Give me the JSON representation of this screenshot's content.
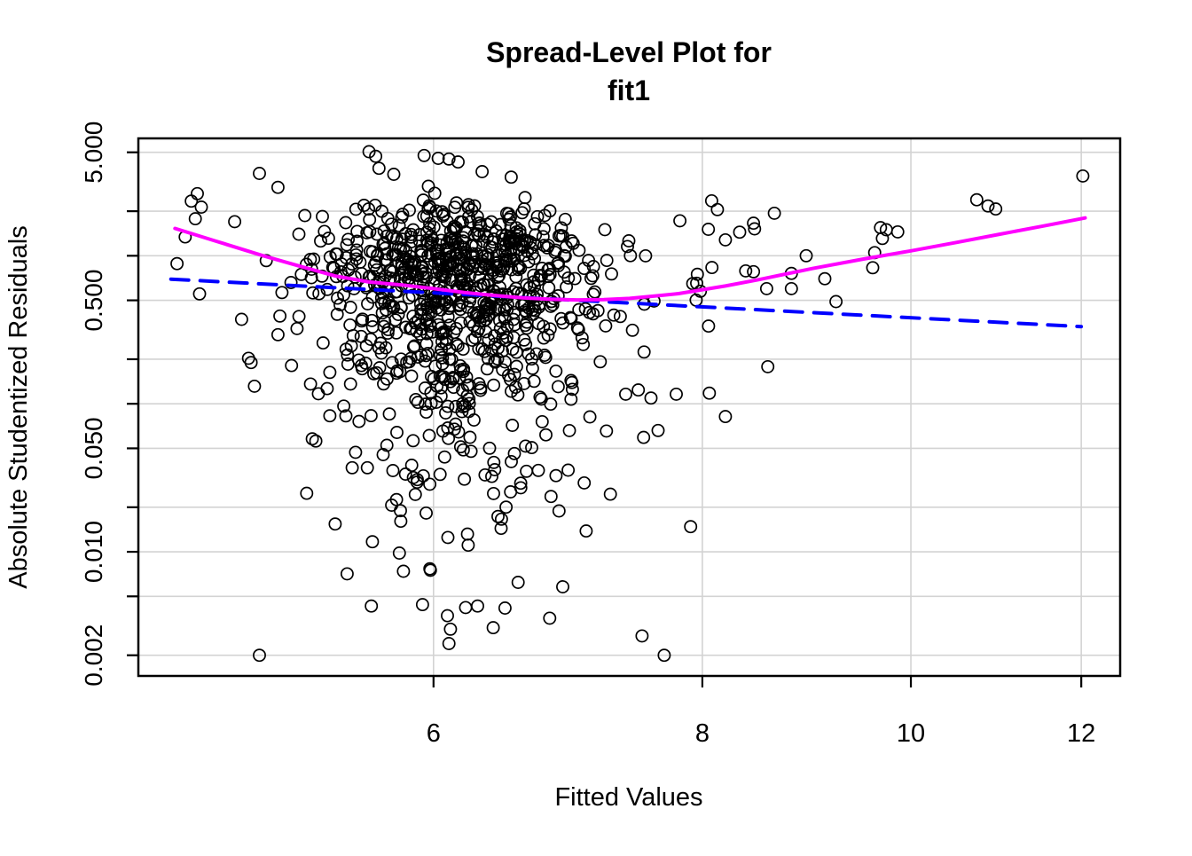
{
  "title": {
    "line1": "Spread-Level Plot for",
    "line2": "fit1"
  },
  "axes": {
    "x": {
      "label": "Fitted Values",
      "scale": "log",
      "ticks": [
        {
          "v": 6,
          "label": "6"
        },
        {
          "v": 8,
          "label": "8"
        },
        {
          "v": 10,
          "label": "10"
        },
        {
          "v": 12,
          "label": "12"
        }
      ]
    },
    "y": {
      "label": "Absolute Studentized Residuals",
      "scale": "log",
      "ticks": [
        {
          "v": 5,
          "label": "5.000"
        },
        {
          "v": 2,
          "label": ""
        },
        {
          "v": 1,
          "label": ""
        },
        {
          "v": 0.5,
          "label": "0.500"
        },
        {
          "v": 0.2,
          "label": ""
        },
        {
          "v": 0.1,
          "label": ""
        },
        {
          "v": 0.05,
          "label": "0.050"
        },
        {
          "v": 0.02,
          "label": ""
        },
        {
          "v": 0.01,
          "label": "0.010"
        },
        {
          "v": 0.005,
          "label": ""
        },
        {
          "v": 0.002,
          "label": "0.002"
        }
      ]
    }
  },
  "colors": {
    "background": "#FFFFFF",
    "grid": "#D3D3D3",
    "box": "#000000",
    "points": "#000000",
    "smooth": "#FF00FF",
    "fit": "#0000FF"
  },
  "chart_data": {
    "type": "scatter",
    "title": "Spread-Level Plot for fit1",
    "xlabel": "Fitted Values",
    "ylabel": "Absolute Studentized Residuals",
    "log_x": true,
    "log_y": true,
    "grid": true,
    "legend": "none",
    "xlim": [
      4.375,
      12.51
    ],
    "ylim": [
      0.00145,
      6.21
    ],
    "marker": "open-circle",
    "series": [
      {
        "name": "absolute-studentized-residuals",
        "kind": "points",
        "points_explicit": [
          [
            4.66,
            2.63
          ],
          [
            4.63,
            2.34
          ],
          [
            4.68,
            2.13
          ],
          [
            4.65,
            1.78
          ],
          [
            4.6,
            1.34
          ],
          [
            4.56,
            0.885
          ],
          [
            4.85,
            1.7
          ],
          [
            4.98,
            3.6
          ],
          [
            5.08,
            2.9
          ],
          [
            4.98,
            0.002
          ],
          [
            5.6,
            5.05
          ],
          [
            5.64,
            4.7
          ],
          [
            5.94,
            4.76
          ],
          [
            6.03,
            4.55
          ],
          [
            6.1,
            4.5
          ],
          [
            6.16,
            4.3
          ],
          [
            5.66,
            3.9
          ],
          [
            5.75,
            3.55
          ],
          [
            6.32,
            3.7
          ],
          [
            6.52,
            3.4
          ],
          [
            5.26,
            0.136
          ],
          [
            5.49,
            0.136
          ],
          [
            5.37,
            0.163
          ],
          [
            5.37,
            0.083
          ],
          [
            5.54,
            0.076
          ],
          [
            5.27,
            0.058
          ],
          [
            5.29,
            0.056
          ],
          [
            5.52,
            0.047
          ],
          [
            5.5,
            0.037
          ],
          [
            5.59,
            0.037
          ],
          [
            5.47,
            0.0071
          ],
          [
            5.62,
            0.0117
          ],
          [
            5.93,
            0.0044
          ],
          [
            5.98,
            0.0075
          ],
          [
            6.09,
            0.0037
          ],
          [
            6.11,
            0.003
          ],
          [
            6.1,
            0.0024
          ],
          [
            6.21,
            0.0042
          ],
          [
            6.29,
            0.0043
          ],
          [
            6.89,
            0.0058
          ],
          [
            7.5,
            0.0027
          ],
          [
            7.68,
            0.002
          ],
          [
            7.9,
            0.0148
          ],
          [
            7.25,
            0.0245
          ],
          [
            7.05,
            0.0292
          ],
          [
            6.93,
            0.0356
          ],
          [
            6.84,
            0.0327
          ],
          [
            7.22,
            0.0655
          ],
          [
            7.63,
            0.066
          ],
          [
            7.37,
            0.116
          ],
          [
            7.47,
            0.124
          ],
          [
            7.78,
            0.116
          ],
          [
            8.06,
            0.118
          ],
          [
            8.2,
            0.082
          ],
          [
            8.58,
            0.178
          ],
          [
            8.08,
            2.35
          ],
          [
            8.13,
            2.05
          ],
          [
            8.2,
            1.28
          ],
          [
            8.45,
            1.66
          ],
          [
            8.46,
            1.52
          ],
          [
            8.38,
            0.79
          ],
          [
            8.45,
            0.78
          ],
          [
            8.57,
            0.6
          ],
          [
            8.8,
            0.76
          ],
          [
            8.8,
            0.6
          ],
          [
            8.94,
            1.0
          ],
          [
            9.12,
            0.7
          ],
          [
            9.23,
            0.49
          ],
          [
            9.6,
            0.83
          ],
          [
            9.62,
            1.05
          ],
          [
            9.68,
            1.55
          ],
          [
            9.74,
            1.5
          ],
          [
            9.86,
            1.45
          ],
          [
            9.7,
            1.31
          ],
          [
            10.73,
            2.39
          ],
          [
            10.86,
            2.17
          ],
          [
            10.95,
            2.07
          ],
          [
            12.02,
            3.46
          ]
        ],
        "cloud": {
          "comment": "dense overlapping cluster of ~1000 open circles; reproduced with seeded generator",
          "count": 920,
          "seed": 1234567,
          "x_log10_mixture": [
            {
              "w": 0.85,
              "mu": 0.7875,
              "sd": 0.031
            },
            {
              "w": 0.12,
              "mu": 0.818,
              "sd": 0.055
            },
            {
              "w": 0.03,
              "mu": 0.762,
              "sd": 0.075
            }
          ],
          "x_log10_clip": [
            0.658,
            0.937
          ],
          "y_abs_normal_scale": 0.85,
          "y_log10_clip": [
            -2.84,
            0.515
          ]
        }
      },
      {
        "name": "lowess-smooth",
        "kind": "line",
        "style": "solid",
        "color": "#FF00FF",
        "width": 4,
        "points": [
          [
            4.55,
            1.53
          ],
          [
            4.75,
            1.26
          ],
          [
            5.0,
            1.0
          ],
          [
            5.2,
            0.85
          ],
          [
            5.4,
            0.73
          ],
          [
            5.6,
            0.665
          ],
          [
            5.8,
            0.635
          ],
          [
            6.0,
            0.6
          ],
          [
            6.2,
            0.565
          ],
          [
            6.4,
            0.54
          ],
          [
            6.6,
            0.52
          ],
          [
            6.8,
            0.508
          ],
          [
            7.0,
            0.503
          ],
          [
            7.2,
            0.505
          ],
          [
            7.4,
            0.515
          ],
          [
            7.6,
            0.535
          ],
          [
            7.8,
            0.555
          ],
          [
            8.0,
            0.59
          ],
          [
            8.2,
            0.625
          ],
          [
            8.5,
            0.69
          ],
          [
            9.0,
            0.82
          ],
          [
            9.5,
            0.95
          ],
          [
            10.0,
            1.08
          ],
          [
            10.5,
            1.23
          ],
          [
            11.0,
            1.4
          ],
          [
            11.5,
            1.58
          ],
          [
            12.05,
            1.8
          ]
        ]
      },
      {
        "name": "linear-fit",
        "kind": "line",
        "style": "dashed",
        "color": "#0000FF",
        "width": 4,
        "dash": [
          20,
          13
        ],
        "points": [
          [
            4.53,
            0.695
          ],
          [
            12.0,
            0.332
          ]
        ]
      }
    ]
  }
}
